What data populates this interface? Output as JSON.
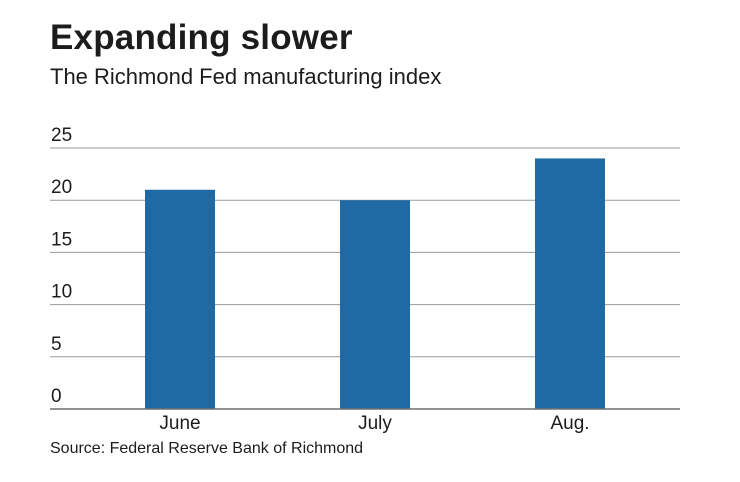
{
  "chart_data": {
    "type": "bar",
    "title": "Expanding slower",
    "subtitle": "The Richmond Fed manufacturing index",
    "source": "Source: Federal Reserve Bank of Richmond",
    "categories": [
      "June",
      "July",
      "Aug."
    ],
    "values": [
      21,
      20,
      24
    ],
    "ylim": [
      0,
      25
    ],
    "yticks": [
      0,
      5,
      10,
      15,
      20,
      25
    ],
    "ytick_labels": [
      "0",
      "5",
      "10",
      "15",
      "20",
      "25"
    ],
    "xlabel": "",
    "ylabel": "",
    "grid": true,
    "legend": "none",
    "bar_color": "#1f6aa5",
    "grid_color": "#9a9a9a",
    "axis_color": "#6f6f6f"
  }
}
